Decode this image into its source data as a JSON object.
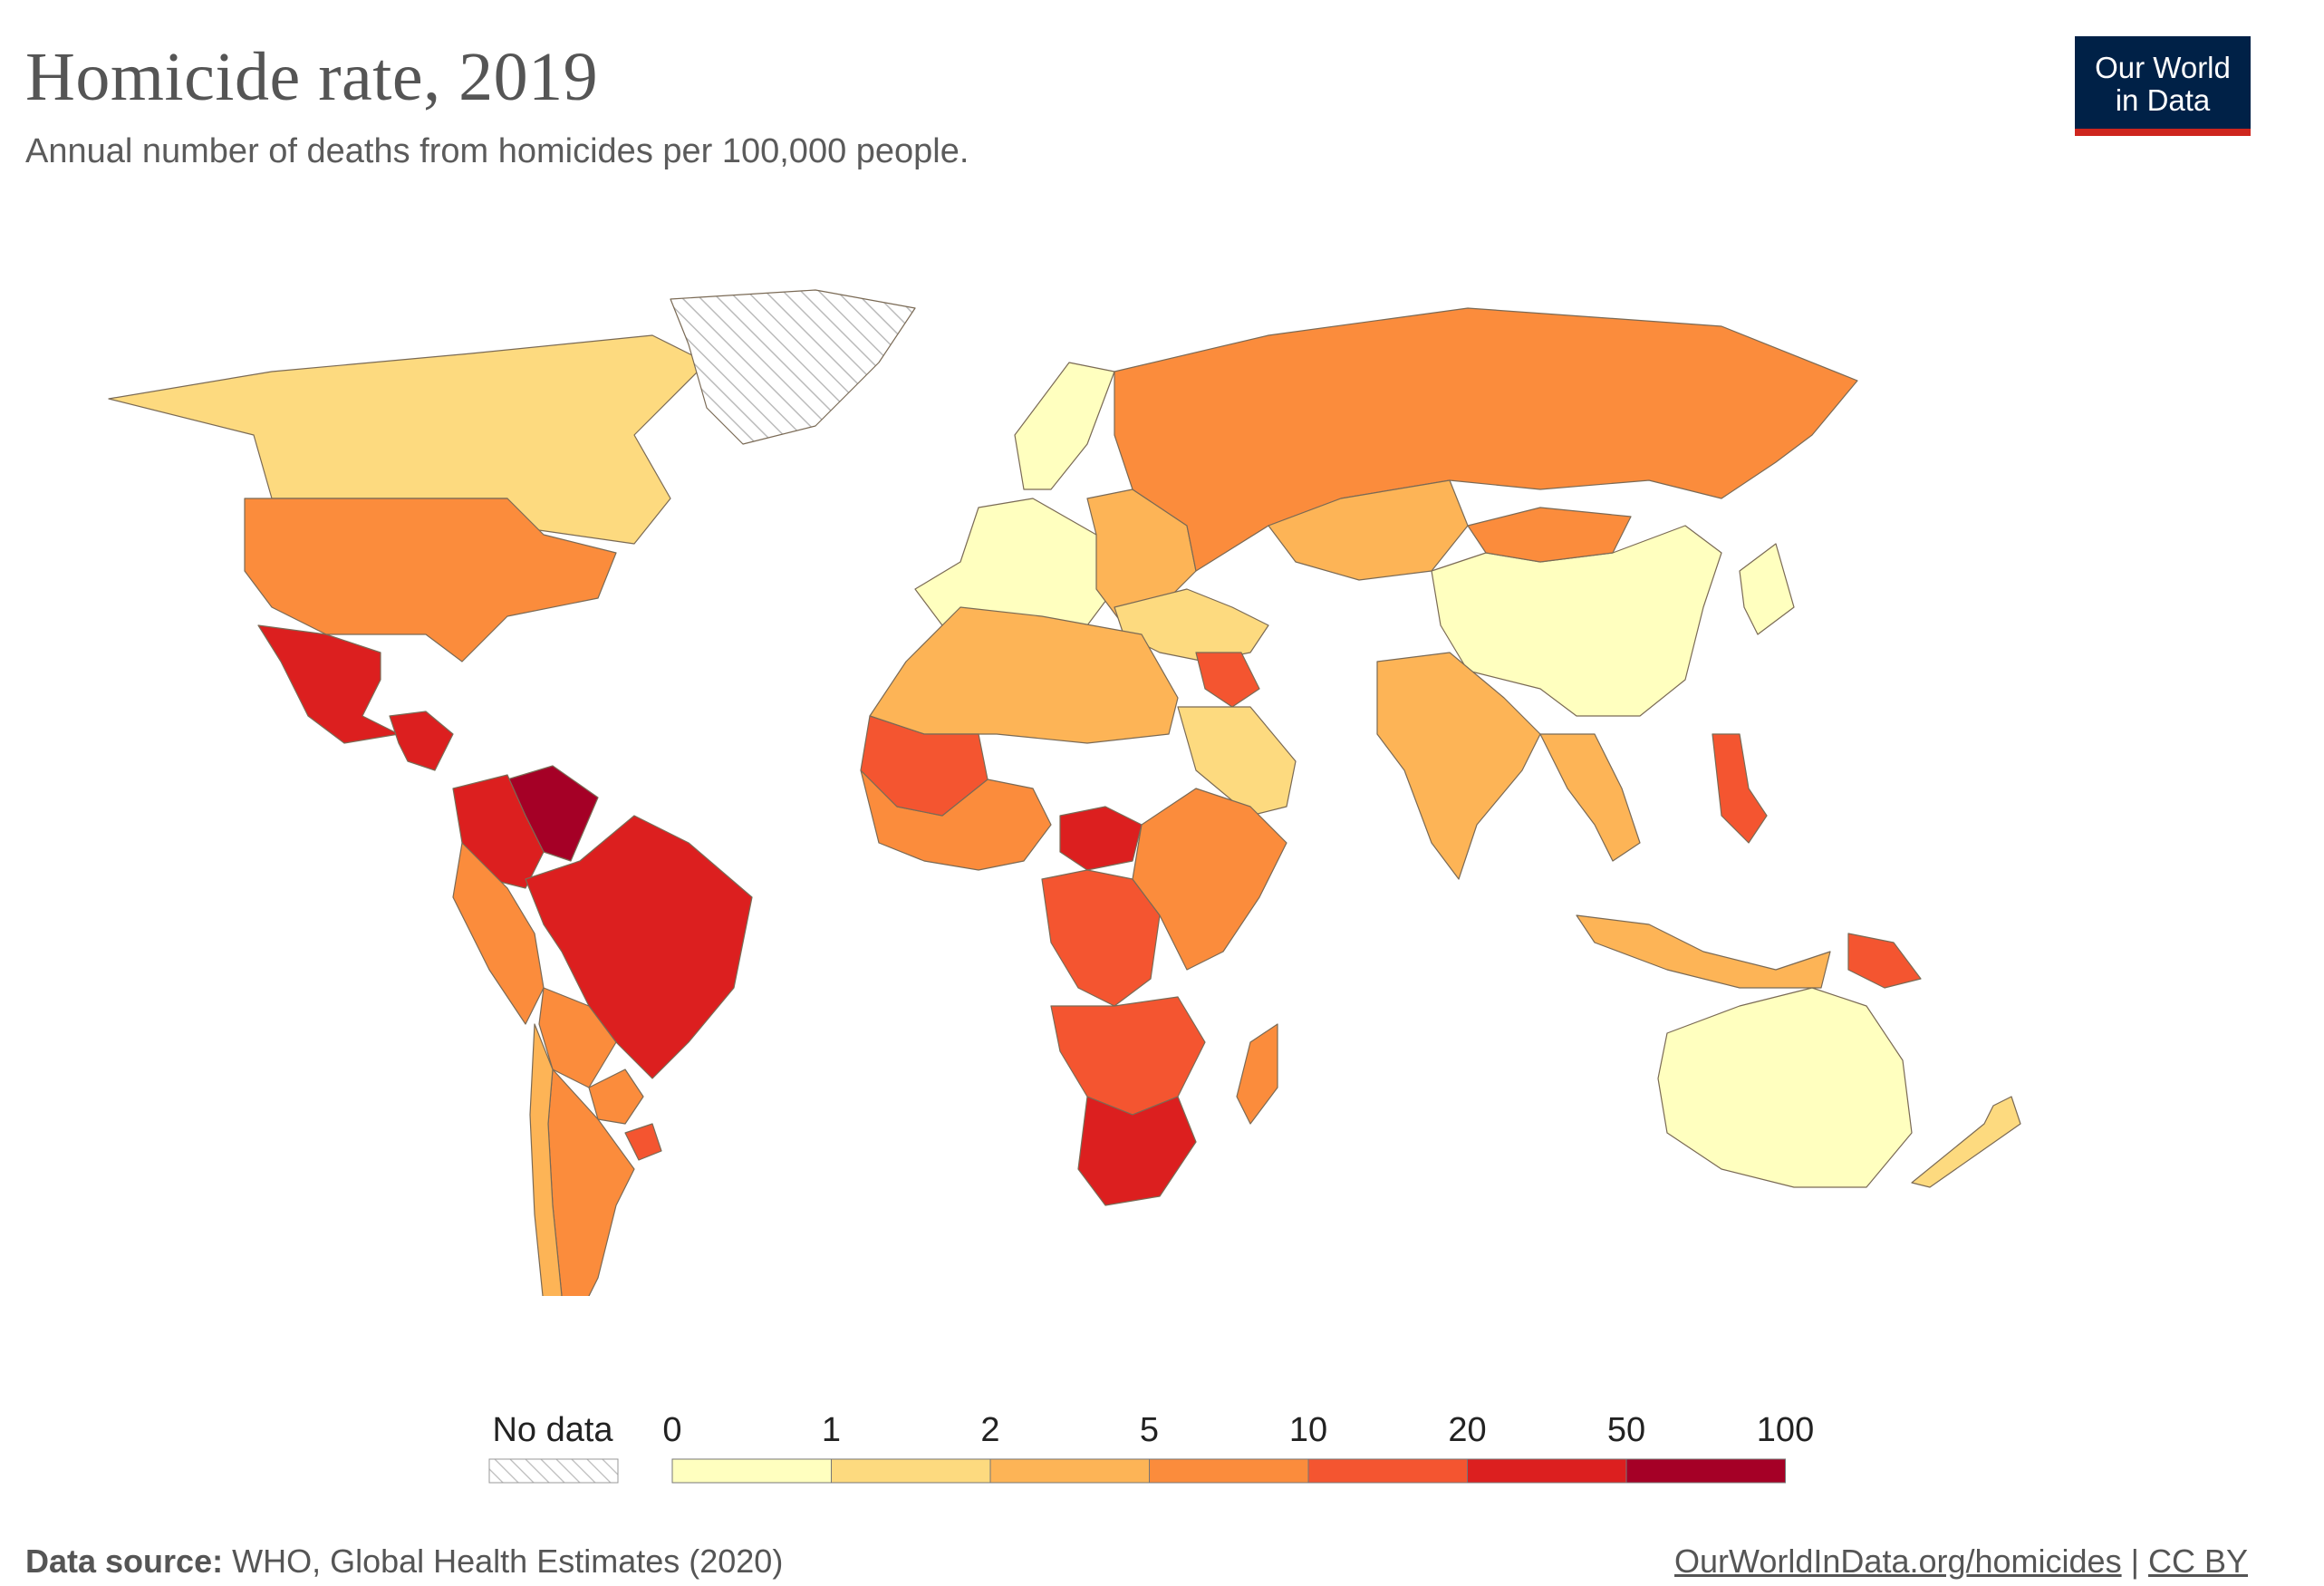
{
  "header": {
    "title": "Homicide rate, 2019",
    "subtitle": "Annual number of deaths from homicides per 100,000 people.",
    "logo_line1": "Our World",
    "logo_line2": "in Data"
  },
  "legend": {
    "no_data_label": "No data",
    "ticks": [
      "0",
      "1",
      "2",
      "5",
      "10",
      "20",
      "50",
      "100"
    ],
    "bins": [
      {
        "range": "0–1",
        "color": "#ffffbf"
      },
      {
        "range": "1–2",
        "color": "#fdda7f"
      },
      {
        "range": "2–5",
        "color": "#fdb456"
      },
      {
        "range": "5–10",
        "color": "#fb8c3c"
      },
      {
        "range": "10–20",
        "color": "#f45530"
      },
      {
        "range": "20–50",
        "color": "#dc1f1f"
      },
      {
        "range": "50–100",
        "color": "#a50026"
      }
    ]
  },
  "footer": {
    "source_label": "Data source:",
    "source_text": "WHO, Global Health Estimates (2020)",
    "link_text": "OurWorldInData.org/homicides",
    "separator": "|",
    "license": "CC BY"
  },
  "regions": [
    {
      "name": "Canada",
      "bin": 1
    },
    {
      "name": "United States",
      "bin": 3
    },
    {
      "name": "Greenland",
      "bin": null
    },
    {
      "name": "Mexico",
      "bin": 5
    },
    {
      "name": "Central America",
      "bin": 5
    },
    {
      "name": "Venezuela",
      "bin": 6
    },
    {
      "name": "Colombia",
      "bin": 5
    },
    {
      "name": "Brazil",
      "bin": 5
    },
    {
      "name": "Peru",
      "bin": 3
    },
    {
      "name": "Bolivia",
      "bin": 3
    },
    {
      "name": "Argentina",
      "bin": 3
    },
    {
      "name": "Chile",
      "bin": 2
    },
    {
      "name": "Uruguay",
      "bin": 4
    },
    {
      "name": "Paraguay",
      "bin": 3
    },
    {
      "name": "Western Europe",
      "bin": 0
    },
    {
      "name": "Scandinavia",
      "bin": 0
    },
    {
      "name": "Eastern Europe",
      "bin": 2
    },
    {
      "name": "Russia",
      "bin": 3
    },
    {
      "name": "Kazakhstan",
      "bin": 2
    },
    {
      "name": "China",
      "bin": 0
    },
    {
      "name": "Mongolia",
      "bin": 3
    },
    {
      "name": "India",
      "bin": 2
    },
    {
      "name": "Middle East",
      "bin": 1
    },
    {
      "name": "Iraq",
      "bin": 4
    },
    {
      "name": "Saudi Arabia",
      "bin": 1
    },
    {
      "name": "North Africa",
      "bin": 2
    },
    {
      "name": "West Africa",
      "bin": 3
    },
    {
      "name": "Mali",
      "bin": 4
    },
    {
      "name": "Central African Republic",
      "bin": 5
    },
    {
      "name": "DR Congo",
      "bin": 4
    },
    {
      "name": "East Africa",
      "bin": 3
    },
    {
      "name": "Southern Africa",
      "bin": 4
    },
    {
      "name": "South Africa",
      "bin": 5
    },
    {
      "name": "Madagascar",
      "bin": 3
    },
    {
      "name": "Southeast Asia",
      "bin": 2
    },
    {
      "name": "Philippines",
      "bin": 4
    },
    {
      "name": "Indonesia",
      "bin": 2
    },
    {
      "name": "Papua New Guinea",
      "bin": 4
    },
    {
      "name": "Japan",
      "bin": 0
    },
    {
      "name": "Australia",
      "bin": 0
    },
    {
      "name": "New Zealand",
      "bin": 1
    }
  ]
}
